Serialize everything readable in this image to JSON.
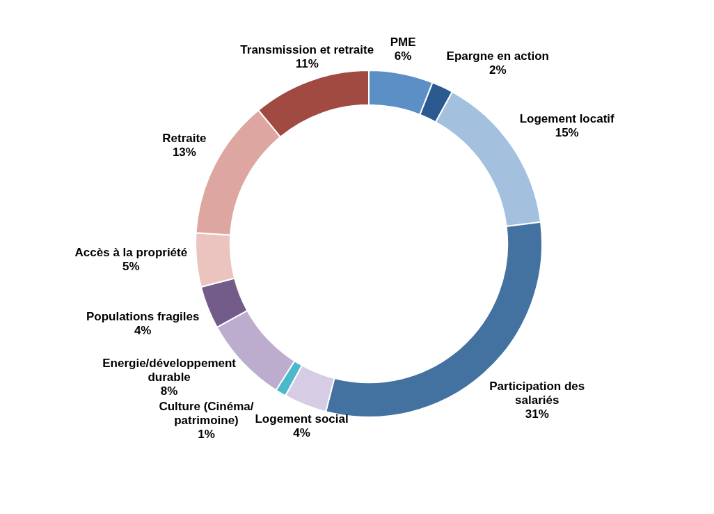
{
  "chart_data": {
    "type": "donut",
    "categories": [
      "PME",
      "Epargne en action",
      "Logement locatif",
      "Participation des salariés",
      "Logement social",
      "Culture (Cinéma/patrimoine)",
      "Energie/développement durable",
      "Populations fragiles",
      "Accès à la propriété",
      "Retraite",
      "Transmission et retraite"
    ],
    "values": [
      6,
      2,
      15,
      31,
      4,
      1,
      8,
      4,
      5,
      13,
      11
    ],
    "value_labels": [
      "6%",
      "2%",
      "15%",
      "31%",
      "4%",
      "1%",
      "8%",
      "4%",
      "5%",
      "13%",
      "11%"
    ],
    "colors": [
      "#5b8fc5",
      "#2a5a8f",
      "#a3c0de",
      "#4472a0",
      "#d6cce3",
      "#4bb8cc",
      "#bcadce",
      "#735b8a",
      "#ebc4c0",
      "#dea6a0",
      "#a04a42"
    ],
    "legend": false
  }
}
